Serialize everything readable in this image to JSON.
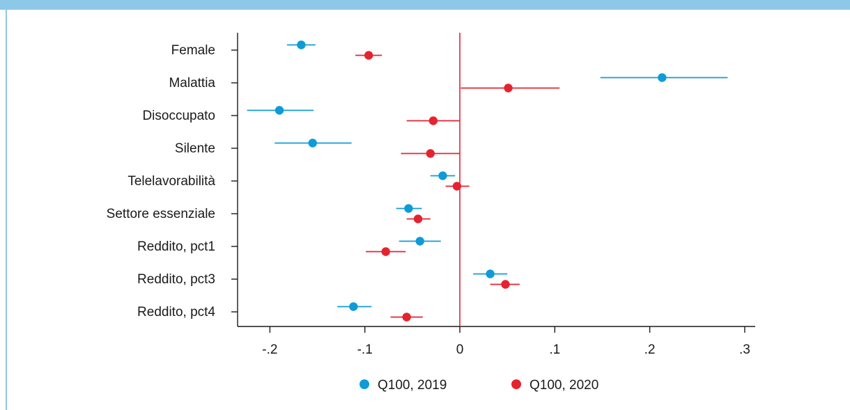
{
  "chart_data": {
    "type": "scatter",
    "categories": [
      "Female",
      "Malattia",
      "Disoccupato",
      "Silente",
      "Telelavorabilità",
      "Settore essenziale",
      "Reddito, pct1",
      "Reddito, pct3",
      "Reddito, pct4"
    ],
    "x_ticks": [
      -0.2,
      -0.1,
      0,
      0.1,
      0.2,
      0.3
    ],
    "x_tick_labels": [
      "-.2",
      "-.1",
      "0",
      ".1",
      ".2",
      ".3"
    ],
    "xlim": [
      -0.235,
      0.31
    ],
    "reference_line": 0,
    "series": [
      {
        "name": "Q100, 2019",
        "color": "#0f9bd7",
        "points": [
          {
            "estimate": -0.167,
            "ci": [
              -0.182,
              -0.152
            ]
          },
          {
            "estimate": 0.213,
            "ci": [
              0.148,
              0.282
            ]
          },
          {
            "estimate": -0.19,
            "ci": [
              -0.224,
              -0.154
            ]
          },
          {
            "estimate": -0.155,
            "ci": [
              -0.195,
              -0.114
            ]
          },
          {
            "estimate": -0.018,
            "ci": [
              -0.031,
              -0.005
            ]
          },
          {
            "estimate": -0.054,
            "ci": [
              -0.067,
              -0.04
            ]
          },
          {
            "estimate": -0.042,
            "ci": [
              -0.064,
              -0.02
            ]
          },
          {
            "estimate": 0.032,
            "ci": [
              0.014,
              0.05
            ]
          },
          {
            "estimate": -0.112,
            "ci": [
              -0.129,
              -0.093
            ]
          }
        ]
      },
      {
        "name": "Q100, 2020",
        "color": "#e52330",
        "points": [
          {
            "estimate": -0.096,
            "ci": [
              -0.11,
              -0.082
            ]
          },
          {
            "estimate": 0.051,
            "ci": [
              0.001,
              0.105
            ]
          },
          {
            "estimate": -0.028,
            "ci": [
              -0.056,
              0
            ]
          },
          {
            "estimate": -0.031,
            "ci": [
              -0.062,
              0
            ]
          },
          {
            "estimate": -0.003,
            "ci": [
              -0.015,
              0.01
            ]
          },
          {
            "estimate": -0.044,
            "ci": [
              -0.056,
              -0.031
            ]
          },
          {
            "estimate": -0.078,
            "ci": [
              -0.099,
              -0.057
            ]
          },
          {
            "estimate": 0.048,
            "ci": [
              0.032,
              0.063
            ]
          },
          {
            "estimate": -0.056,
            "ci": [
              -0.073,
              -0.039
            ]
          }
        ]
      }
    ],
    "legend_position": "bottom"
  }
}
